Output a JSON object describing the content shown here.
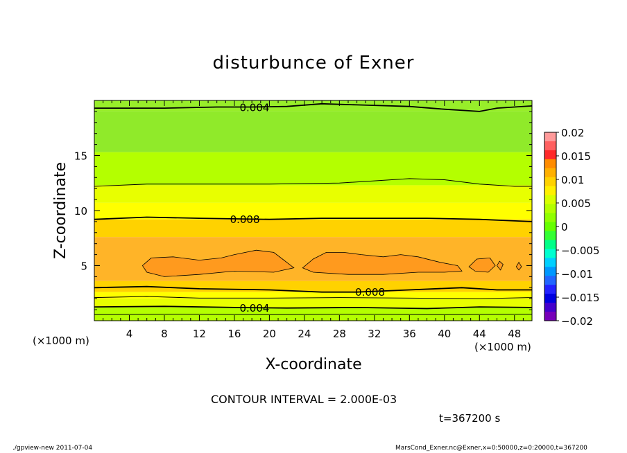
{
  "chart_data": {
    "type": "heatmap",
    "title": "disturbunce of Exner",
    "xlabel": "X-coordinate",
    "ylabel": "Z-coordinate",
    "x_unit": "(×1000 m)",
    "y_unit": "(×1000 m)",
    "xlim": [
      0,
      50
    ],
    "ylim": [
      0,
      20
    ],
    "x_ticks": [
      4,
      8,
      12,
      16,
      20,
      24,
      28,
      32,
      36,
      40,
      44,
      48
    ],
    "y_ticks": [
      5,
      10,
      15
    ],
    "colorbar": {
      "ticks": [
        "0.02",
        "0.015",
        "0.01",
        "0.005",
        "0",
        "−0.005",
        "−0.01",
        "−0.015",
        "−0.02"
      ],
      "range": [
        -0.02,
        0.02
      ],
      "colors": [
        "#ff9a9a",
        "#ff6060",
        "#ff2a2a",
        "#ff8c00",
        "#ffb000",
        "#ffd200",
        "#fff000",
        "#d8ff00",
        "#b4ff00",
        "#90ff00",
        "#66ff00",
        "#33ff33",
        "#00ff88",
        "#00ffd0",
        "#00d0ff",
        "#0098ff",
        "#2266ff",
        "#2222ff",
        "#0000e0",
        "#4400cc",
        "#7700b8"
      ]
    },
    "bands": [
      {
        "from": 19.0,
        "to": 20.0,
        "color": "#98ee2a"
      },
      {
        "from": 15.3,
        "to": 19.0,
        "color": "#90ea2a"
      },
      {
        "from": 12.3,
        "to": 15.3,
        "color": "#b4ff00"
      },
      {
        "from": 10.7,
        "to": 12.3,
        "color": "#e8ff00"
      },
      {
        "from": 9.2,
        "to": 10.7,
        "color": "#ffff00"
      },
      {
        "from": 7.6,
        "to": 9.2,
        "color": "#ffd200"
      },
      {
        "from": 3.6,
        "to": 7.6,
        "color": "#ffb428"
      },
      {
        "from": 2.6,
        "to": 3.6,
        "color": "#ffd200"
      },
      {
        "from": 2.0,
        "to": 2.6,
        "color": "#ffff00"
      },
      {
        "from": 1.2,
        "to": 2.0,
        "color": "#e8ff00"
      },
      {
        "from": 0.0,
        "to": 1.2,
        "color": "#b4ff00"
      }
    ],
    "blobs_color": "#ff9a1e",
    "blobs": [
      [
        [
          5.5,
          5.0
        ],
        [
          6.5,
          5.7
        ],
        [
          9,
          5.8
        ],
        [
          12,
          5.5
        ],
        [
          14.5,
          5.7
        ],
        [
          16,
          6.0
        ],
        [
          18.5,
          6.4
        ],
        [
          20.5,
          6.2
        ],
        [
          21.5,
          5.6
        ],
        [
          22.8,
          4.8
        ],
        [
          20.5,
          4.4
        ],
        [
          16,
          4.5
        ],
        [
          12,
          4.2
        ],
        [
          8,
          4.0
        ],
        [
          6,
          4.4
        ]
      ],
      [
        [
          23.8,
          4.8
        ],
        [
          25,
          5.6
        ],
        [
          26.5,
          6.2
        ],
        [
          28.5,
          6.2
        ],
        [
          30.5,
          6.0
        ],
        [
          33,
          5.8
        ],
        [
          35,
          6.0
        ],
        [
          37,
          5.8
        ],
        [
          39.5,
          5.3
        ],
        [
          41.5,
          5.0
        ],
        [
          42,
          4.5
        ],
        [
          40,
          4.4
        ],
        [
          37,
          4.4
        ],
        [
          33,
          4.2
        ],
        [
          29,
          4.2
        ],
        [
          25,
          4.4
        ]
      ],
      [
        [
          42.8,
          4.9
        ],
        [
          43.7,
          5.6
        ],
        [
          45.2,
          5.7
        ],
        [
          45.8,
          5.0
        ],
        [
          45,
          4.4
        ],
        [
          43.5,
          4.5
        ]
      ],
      [
        [
          46,
          5.0
        ],
        [
          46.3,
          5.4
        ],
        [
          46.7,
          5.1
        ],
        [
          46.4,
          4.6
        ]
      ],
      [
        [
          48.2,
          4.9
        ],
        [
          48.5,
          5.3
        ],
        [
          48.8,
          4.9
        ],
        [
          48.5,
          4.6
        ]
      ]
    ],
    "contours": [
      {
        "level": "0.004",
        "label": "0.004",
        "label_x": 18.3,
        "points": [
          [
            0,
            19.3
          ],
          [
            8,
            19.3
          ],
          [
            14,
            19.4
          ],
          [
            18,
            19.4
          ],
          [
            22,
            19.45
          ],
          [
            26,
            19.7
          ],
          [
            30,
            19.6
          ],
          [
            36,
            19.45
          ],
          [
            40,
            19.2
          ],
          [
            44,
            19.0
          ],
          [
            46,
            19.3
          ],
          [
            50,
            19.5
          ]
        ]
      },
      {
        "level": "0.006",
        "label": "",
        "label_x": null,
        "points": [
          [
            0,
            12.2
          ],
          [
            6,
            12.4
          ],
          [
            12,
            12.4
          ],
          [
            20,
            12.4
          ],
          [
            28,
            12.5
          ],
          [
            32,
            12.7
          ],
          [
            36,
            12.9
          ],
          [
            40,
            12.8
          ],
          [
            44,
            12.4
          ],
          [
            48,
            12.2
          ],
          [
            50,
            12.2
          ]
        ]
      },
      {
        "level": "0.008",
        "label": "0.008",
        "label_x": 17.2,
        "points": [
          [
            0,
            9.2
          ],
          [
            6,
            9.4
          ],
          [
            12,
            9.3
          ],
          [
            20,
            9.2
          ],
          [
            26,
            9.3
          ],
          [
            32,
            9.3
          ],
          [
            38,
            9.3
          ],
          [
            44,
            9.2
          ],
          [
            50,
            9.0
          ]
        ]
      },
      {
        "level": "0.008",
        "label": "0.008",
        "label_x": 31.5,
        "points": [
          [
            0,
            3.0
          ],
          [
            6,
            3.1
          ],
          [
            12,
            2.9
          ],
          [
            20,
            2.8
          ],
          [
            26,
            2.6
          ],
          [
            30,
            2.6
          ],
          [
            36,
            2.8
          ],
          [
            42,
            3.0
          ],
          [
            46,
            2.8
          ],
          [
            50,
            2.8
          ]
        ]
      },
      {
        "level": "0.006",
        "label": "",
        "label_x": null,
        "points": [
          [
            0,
            2.1
          ],
          [
            6,
            2.2
          ],
          [
            12,
            2.05
          ],
          [
            20,
            2.05
          ],
          [
            28,
            2.1
          ],
          [
            36,
            2.05
          ],
          [
            44,
            2.0
          ],
          [
            50,
            2.1
          ]
        ]
      },
      {
        "level": "0.004",
        "label": "0.004",
        "label_x": 18.3,
        "points": [
          [
            0,
            1.25
          ],
          [
            8,
            1.3
          ],
          [
            16,
            1.2
          ],
          [
            22,
            1.15
          ],
          [
            30,
            1.2
          ],
          [
            38,
            1.1
          ],
          [
            44,
            1.25
          ],
          [
            50,
            1.2
          ]
        ]
      },
      {
        "level": "0.002",
        "label": "",
        "label_x": null,
        "points": [
          [
            0,
            0.55
          ],
          [
            10,
            0.6
          ],
          [
            20,
            0.55
          ],
          [
            30,
            0.6
          ],
          [
            40,
            0.55
          ],
          [
            50,
            0.6
          ]
        ]
      }
    ],
    "contour_interval": "CONTOUR INTERVAL = 2.000E-03",
    "time_label": "t=367200 s"
  },
  "footer": {
    "left": "./gpview-new   2011-07-04",
    "right": "MarsCond_Exner.nc@Exner,x=0:50000,z=0:20000,t=367200"
  }
}
